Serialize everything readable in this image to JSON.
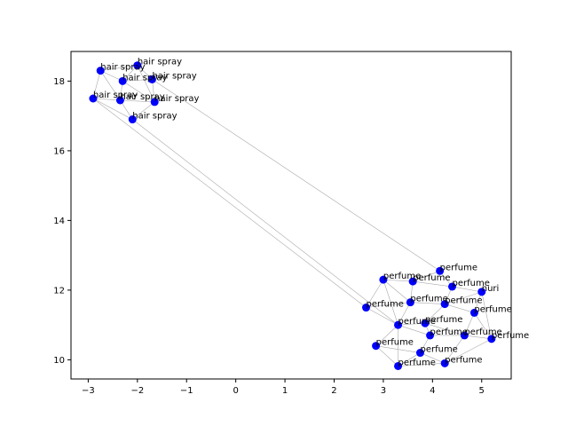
{
  "chart_data": {
    "type": "scatter",
    "title": "",
    "xlabel": "",
    "ylabel": "",
    "xlim": [
      -3.35,
      5.6
    ],
    "ylim": [
      9.45,
      18.85
    ],
    "xticks": [
      -3,
      -2,
      -1,
      0,
      1,
      2,
      3,
      4,
      5
    ],
    "yticks": [
      10,
      12,
      14,
      16,
      18
    ],
    "grid": false,
    "legend": "none",
    "point_color": "#0000ff",
    "edge_color": "#aaaaaa",
    "points": [
      {
        "x": -2.75,
        "y": 18.3,
        "label": "hair spray"
      },
      {
        "x": -2.3,
        "y": 18.0,
        "label": "hair spray"
      },
      {
        "x": -2.0,
        "y": 18.45,
        "label": "hair spray"
      },
      {
        "x": -1.7,
        "y": 18.05,
        "label": "hair spray"
      },
      {
        "x": -2.9,
        "y": 17.5,
        "label": "hair spray"
      },
      {
        "x": -2.35,
        "y": 17.45,
        "label": "hair spray"
      },
      {
        "x": -1.65,
        "y": 17.4,
        "label": "hair spray"
      },
      {
        "x": -2.1,
        "y": 16.9,
        "label": "hair spray"
      },
      {
        "x": 4.15,
        "y": 12.55,
        "label": "perfume"
      },
      {
        "x": 3.0,
        "y": 12.3,
        "label": "perfume"
      },
      {
        "x": 3.6,
        "y": 12.25,
        "label": "perfume"
      },
      {
        "x": 4.4,
        "y": 12.1,
        "label": "perfume"
      },
      {
        "x": 5.0,
        "y": 11.95,
        "label": "nuri"
      },
      {
        "x": 3.55,
        "y": 11.65,
        "label": "perfume"
      },
      {
        "x": 4.25,
        "y": 11.6,
        "label": "perfume"
      },
      {
        "x": 2.65,
        "y": 11.5,
        "label": "perfume"
      },
      {
        "x": 4.85,
        "y": 11.35,
        "label": "perfume"
      },
      {
        "x": 3.3,
        "y": 11.0,
        "label": "perfume"
      },
      {
        "x": 3.85,
        "y": 11.05,
        "label": "perfume"
      },
      {
        "x": 3.95,
        "y": 10.7,
        "label": "perfume"
      },
      {
        "x": 4.65,
        "y": 10.7,
        "label": "perfume"
      },
      {
        "x": 5.2,
        "y": 10.6,
        "label": "perfume"
      },
      {
        "x": 2.85,
        "y": 10.4,
        "label": "perfume"
      },
      {
        "x": 3.75,
        "y": 10.2,
        "label": "perfume"
      },
      {
        "x": 4.25,
        "y": 9.9,
        "label": "perfume"
      },
      {
        "x": 3.3,
        "y": 9.82,
        "label": "perfume"
      }
    ],
    "edges": [
      [
        0,
        1
      ],
      [
        0,
        2
      ],
      [
        0,
        4
      ],
      [
        1,
        2
      ],
      [
        1,
        3
      ],
      [
        1,
        5
      ],
      [
        2,
        3
      ],
      [
        2,
        6
      ],
      [
        3,
        6
      ],
      [
        4,
        5
      ],
      [
        5,
        6
      ],
      [
        5,
        7
      ],
      [
        6,
        7
      ],
      [
        4,
        7
      ],
      [
        1,
        6
      ],
      [
        0,
        5
      ],
      [
        3,
        8
      ],
      [
        4,
        15
      ],
      [
        7,
        17
      ],
      [
        8,
        10
      ],
      [
        8,
        11
      ],
      [
        9,
        10
      ],
      [
        9,
        13
      ],
      [
        10,
        11
      ],
      [
        10,
        13
      ],
      [
        11,
        12
      ],
      [
        11,
        14
      ],
      [
        12,
        14
      ],
      [
        12,
        16
      ],
      [
        13,
        14
      ],
      [
        13,
        15
      ],
      [
        13,
        17
      ],
      [
        14,
        16
      ],
      [
        14,
        18
      ],
      [
        15,
        17
      ],
      [
        16,
        20
      ],
      [
        17,
        18
      ],
      [
        17,
        19
      ],
      [
        18,
        19
      ],
      [
        18,
        20
      ],
      [
        19,
        20
      ],
      [
        19,
        23
      ],
      [
        20,
        21
      ],
      [
        20,
        24
      ],
      [
        21,
        24
      ],
      [
        22,
        17
      ],
      [
        22,
        23
      ],
      [
        22,
        25
      ],
      [
        23,
        24
      ],
      [
        23,
        25
      ],
      [
        24,
        25
      ],
      [
        9,
        15
      ],
      [
        16,
        21
      ],
      [
        12,
        21
      ],
      [
        9,
        17
      ],
      [
        25,
        17
      ]
    ]
  }
}
